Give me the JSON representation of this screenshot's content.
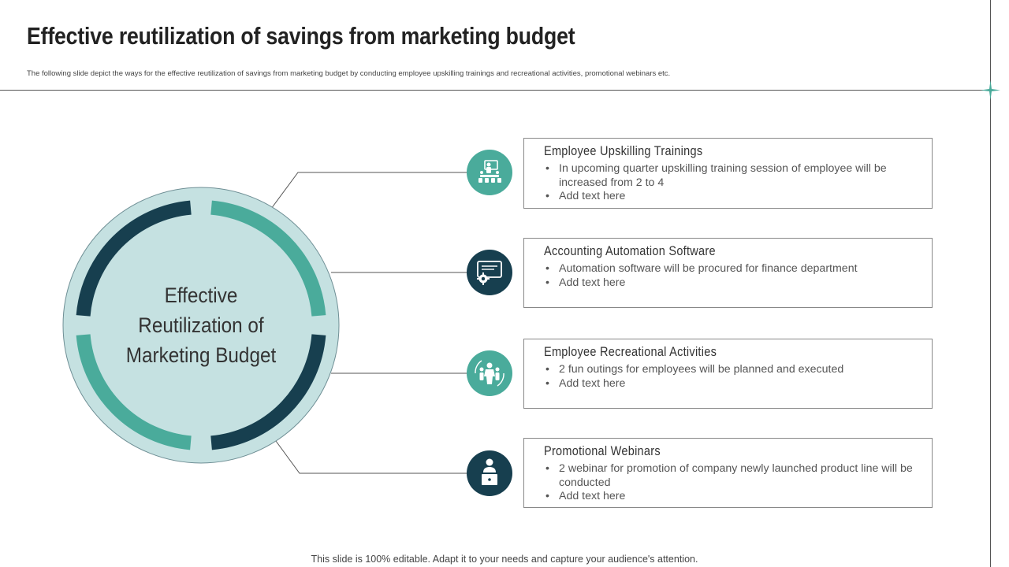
{
  "title": "Effective reutilization of savings from marketing budget",
  "subtitle": "The following slide depict the ways for the effective reutilization of savings from marketing budget by conducting employee upskilling trainings and recreational activities, promotional webinars etc.",
  "center": {
    "lines": [
      "Effective",
      "Reutilization of",
      "Marketing Budget"
    ]
  },
  "items": [
    {
      "icon": "training-presentation-icon",
      "title": "Employee Upskilling Trainings",
      "bullets": [
        "In upcoming quarter upskilling training session of employee will be increased from 2 to 4",
        "Add text here"
      ]
    },
    {
      "icon": "monitor-gear-icon",
      "title": "Accounting Automation Software",
      "bullets": [
        "Automation software will be procured for finance department",
        "Add text here"
      ]
    },
    {
      "icon": "people-celebrate-icon",
      "title": "Employee Recreational Activities",
      "bullets": [
        "2 fun outings for employees will be planned and executed",
        "Add text here"
      ]
    },
    {
      "icon": "webinar-presenter-icon",
      "title": "Promotional Webinars",
      "bullets": [
        "2 webinar for promotion of company newly launched product line will be conducted",
        "Add text here"
      ]
    }
  ],
  "footer": "This slide is 100% editable. Adapt it to your needs and capture your audience's attention.",
  "colors": {
    "teal": "#4aab9b",
    "dark_navy": "#173f4f",
    "circle_fill": "#c5e1e1",
    "text": "#333333"
  }
}
